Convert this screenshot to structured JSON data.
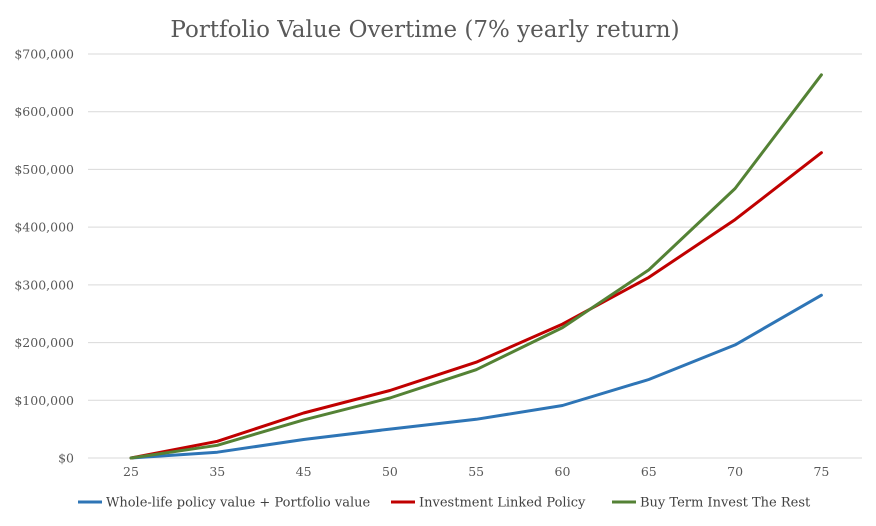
{
  "chart_data": {
    "type": "line",
    "title": "Portfolio Value Overtime (7% yearly return)",
    "xlabel": "",
    "ylabel": "",
    "categories": [
      "25",
      "35",
      "45",
      "50",
      "55",
      "60",
      "65",
      "70",
      "75"
    ],
    "y_ticks": [
      0,
      100000,
      200000,
      300000,
      400000,
      500000,
      600000,
      700000
    ],
    "y_tick_labels": [
      "$0",
      "$100,000",
      "$200,000",
      "$300,000",
      "$400,000",
      "$500,000",
      "$600,000",
      "$700,000"
    ],
    "ylim": [
      0,
      700000
    ],
    "grid": true,
    "legend_position": "bottom",
    "series": [
      {
        "name": "Whole-life policy value + Portfolio value",
        "color": "#2e75b6",
        "values": [
          0,
          10000,
          32000,
          50000,
          67000,
          91000,
          136000,
          196000,
          282000
        ]
      },
      {
        "name": "Investment Linked Policy",
        "color": "#c00000",
        "values": [
          0,
          29000,
          78000,
          117000,
          166000,
          232000,
          313000,
          413000,
          529000
        ]
      },
      {
        "name": "Buy Term Invest The Rest",
        "color": "#548235",
        "values": [
          0,
          22000,
          66000,
          104000,
          153000,
          226000,
          326000,
          467000,
          664000
        ]
      }
    ]
  }
}
